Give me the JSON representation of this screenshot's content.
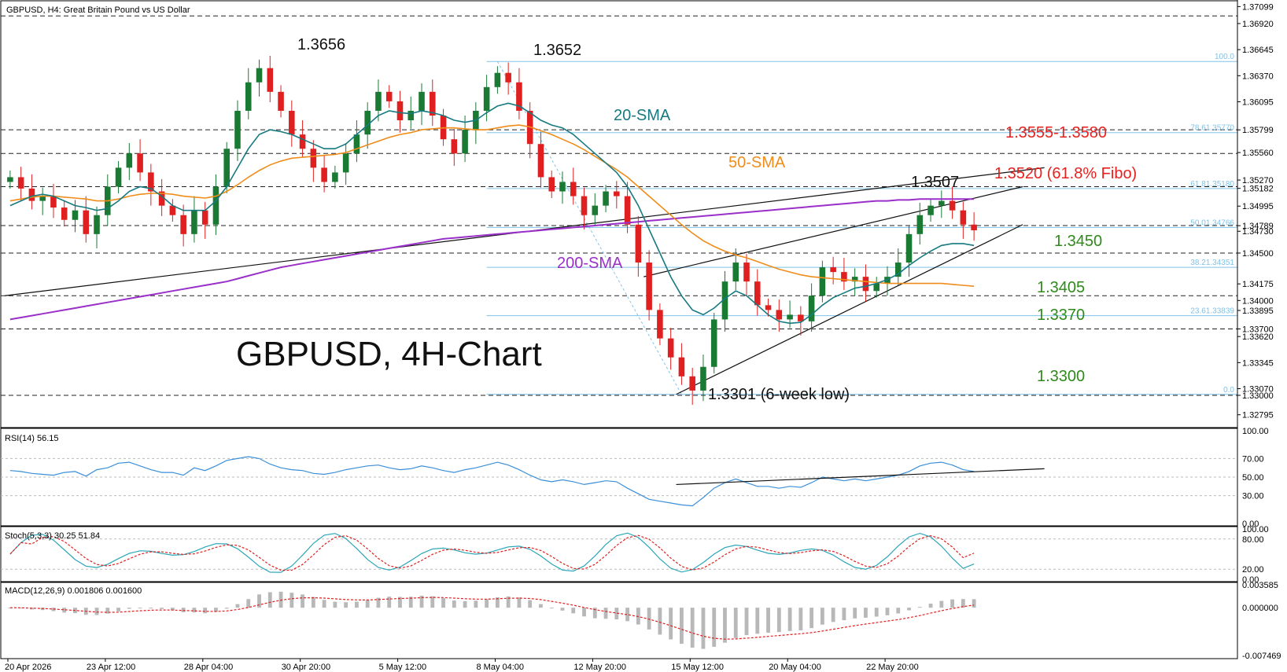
{
  "header": {
    "title": "GBPUSD, H4:  Great Britain Pound vs US Dollar"
  },
  "watermark": "GBPUSD, 4H-Chart",
  "price_axis_ticks": [
    "1.37099",
    "1.36920",
    "1.36645",
    "1.36370",
    "1.36095",
    "1.35799",
    "1.35560",
    "1.35270",
    "1.35182",
    "1.34995",
    "1.34789",
    "1.34730",
    "1.34500",
    "1.34175",
    "1.34000",
    "1.33895",
    "1.33700",
    "1.33620",
    "1.33345",
    "1.33070",
    "1.33000",
    "1.32795"
  ],
  "time_axis": [
    "20 Apr 2026",
    "23 Apr 12:00",
    "28 Apr 04:00",
    "30 Apr 20:00",
    "5 May 12:00",
    "8 May 04:00",
    "12 May 20:00",
    "15 May 12:00",
    "20 May 04:00",
    "22 May 20:00"
  ],
  "annotations": {
    "high1": "1.3656",
    "high2": "1.3652",
    "sma20": "20-SMA",
    "sma50": "50-SMA",
    "sma200": "200-SMA",
    "r_zone": "1.3555-1.3580",
    "fibo618": "1.3520 (61.8% Fibo)",
    "peak": "1.3507",
    "s1": "1.3450",
    "s2": "1.3405",
    "s3": "1.3370",
    "s4": "1.3300",
    "low": "1.3301 (6-week low)"
  },
  "fibo_labels": [
    "100.0",
    "78.61.35770",
    "61.81.35180",
    "50.01.34766",
    "38.21.34351",
    "23.61.33839",
    "0.0"
  ],
  "indicators": {
    "rsi": {
      "label": "RSI(14) 56.15",
      "ticks": [
        "100.00",
        "70.00",
        "50.00",
        "30.00",
        "0.00"
      ]
    },
    "stoch": {
      "label": "Stoch(5,3,3) 30.25 51.84",
      "ticks": [
        "100.00",
        "80.00",
        "20.00",
        "0.00"
      ]
    },
    "macd": {
      "label": "MACD(12,26,9) 0.001806 0.001600",
      "ticks": [
        "0.003585",
        "0.000000",
        "-0.007469"
      ]
    }
  },
  "colors": {
    "bull": "#1a7a34",
    "bear": "#e02020",
    "sma20": "#167a80",
    "sma50": "#f08c1a",
    "sma200": "#9a2fc9",
    "fibo": "#7ec3e8",
    "red_label": "#e8201e",
    "green_label": "#2e8b1a",
    "rsi": "#3b8fd8",
    "stoch_signal": "#e02020"
  },
  "chart_data": {
    "type": "candlestick",
    "symbol": "GBPUSD",
    "timeframe": "H4",
    "ylim": [
      1.3266,
      1.3716
    ],
    "x": [
      "20 Apr 2026",
      "23 Apr 12:00",
      "28 Apr 04:00",
      "30 Apr 20:00",
      "5 May 12:00",
      "8 May 04:00",
      "12 May 20:00",
      "15 May 12:00",
      "20 May 04:00",
      "22 May 20:00"
    ],
    "close_path": [
      1.353,
      1.3518,
      1.3505,
      1.351,
      1.3498,
      1.3485,
      1.3495,
      1.347,
      1.349,
      1.352,
      1.354,
      1.3555,
      1.3535,
      1.3515,
      1.35,
      1.349,
      1.347,
      1.3495,
      1.348,
      1.352,
      1.356,
      1.36,
      1.363,
      1.3645,
      1.362,
      1.36,
      1.3575,
      1.356,
      1.354,
      1.3525,
      1.3535,
      1.3555,
      1.3575,
      1.36,
      1.362,
      1.361,
      1.359,
      1.36,
      1.362,
      1.3595,
      1.357,
      1.3555,
      1.358,
      1.36,
      1.3625,
      1.364,
      1.363,
      1.36,
      1.3565,
      1.353,
      1.3515,
      1.3525,
      1.351,
      1.349,
      1.35,
      1.3515,
      1.351,
      1.348,
      1.344,
      1.339,
      1.336,
      1.334,
      1.332,
      1.3305,
      1.333,
      1.338,
      1.342,
      1.344,
      1.342,
      1.3395,
      1.339,
      1.338,
      1.3385,
      1.3378,
      1.3405,
      1.3435,
      1.343,
      1.342,
      1.3425,
      1.341,
      1.3418,
      1.3425,
      1.344,
      1.347,
      1.349,
      1.35,
      1.3505,
      1.3495,
      1.348,
      1.3474
    ],
    "sma20_path": [
      1.35,
      1.3505,
      1.351,
      1.3512,
      1.351,
      1.3505,
      1.35,
      1.3498,
      1.3495,
      1.3497,
      1.3505,
      1.3515,
      1.352,
      1.3518,
      1.351,
      1.35,
      1.3495,
      1.3495,
      1.3495,
      1.3505,
      1.352,
      1.354,
      1.356,
      1.3575,
      1.358,
      1.3578,
      1.3575,
      1.357,
      1.3565,
      1.356,
      1.356,
      1.3565,
      1.3575,
      1.3585,
      1.3595,
      1.36,
      1.3598,
      1.3597,
      1.36,
      1.3598,
      1.3595,
      1.359,
      1.3588,
      1.359,
      1.3598,
      1.3605,
      1.3608,
      1.3605,
      1.3598,
      1.359,
      1.3585,
      1.3582,
      1.3575,
      1.3565,
      1.3555,
      1.3545,
      1.3535,
      1.352,
      1.35,
      1.3475,
      1.345,
      1.3425,
      1.3405,
      1.339,
      1.3385,
      1.3392,
      1.3402,
      1.341,
      1.3405,
      1.3395,
      1.3385,
      1.3378,
      1.3376,
      1.3377,
      1.3385,
      1.3395,
      1.3403,
      1.3408,
      1.3413,
      1.3415,
      1.3418,
      1.3422,
      1.3428,
      1.3437,
      1.3445,
      1.3452,
      1.3458,
      1.346,
      1.346,
      1.3458
    ],
    "sma50_path": [
      1.3505,
      1.3507,
      1.3509,
      1.351,
      1.351,
      1.3509,
      1.3508,
      1.3507,
      1.3505,
      1.3505,
      1.3507,
      1.351,
      1.3512,
      1.3513,
      1.3513,
      1.3512,
      1.351,
      1.3509,
      1.3508,
      1.351,
      1.3515,
      1.3522,
      1.353,
      1.3537,
      1.3543,
      1.3547,
      1.355,
      1.3551,
      1.3552,
      1.3553,
      1.3554,
      1.3556,
      1.356,
      1.3564,
      1.3568,
      1.3572,
      1.3575,
      1.3577,
      1.358,
      1.3581,
      1.3582,
      1.3582,
      1.3581,
      1.358,
      1.358,
      1.3582,
      1.3584,
      1.3585,
      1.3583,
      1.3579,
      1.3575,
      1.357,
      1.3565,
      1.3559,
      1.3552,
      1.3545,
      1.3538,
      1.353,
      1.352,
      1.351,
      1.35,
      1.349,
      1.348,
      1.3471,
      1.3463,
      1.3457,
      1.3452,
      1.3448,
      1.3445,
      1.3441,
      1.3437,
      1.3433,
      1.343,
      1.3427,
      1.3425,
      1.3424,
      1.3423,
      1.3422,
      1.3421,
      1.342,
      1.3419,
      1.3418,
      1.3418,
      1.3418,
      1.3418,
      1.3418,
      1.3418,
      1.3417,
      1.3416,
      1.3415
    ],
    "sma200_path": [
      1.338,
      1.3382,
      1.3384,
      1.3386,
      1.3388,
      1.339,
      1.3392,
      1.3394,
      1.3396,
      1.3398,
      1.34,
      1.3402,
      1.3404,
      1.3406,
      1.3408,
      1.341,
      1.3412,
      1.3414,
      1.3416,
      1.3418,
      1.342,
      1.3423,
      1.3426,
      1.3429,
      1.3432,
      1.3435,
      1.3437,
      1.3439,
      1.3441,
      1.3443,
      1.3445,
      1.3447,
      1.3449,
      1.3451,
      1.3453,
      1.3455,
      1.3457,
      1.3459,
      1.3461,
      1.3463,
      1.3465,
      1.3466,
      1.3467,
      1.3468,
      1.3469,
      1.347,
      1.3471,
      1.3472,
      1.3473,
      1.3474,
      1.3475,
      1.3476,
      1.3477,
      1.3478,
      1.3479,
      1.348,
      1.3481,
      1.3482,
      1.3483,
      1.3484,
      1.3485,
      1.3486,
      1.3487,
      1.3488,
      1.3489,
      1.349,
      1.3491,
      1.3492,
      1.3493,
      1.3494,
      1.3495,
      1.3496,
      1.3497,
      1.3498,
      1.3499,
      1.35,
      1.3501,
      1.3502,
      1.3503,
      1.3504,
      1.3505,
      1.3505,
      1.3506,
      1.3506,
      1.3507,
      1.3507,
      1.3507,
      1.3507,
      1.3507,
      1.3507
    ],
    "levels": [
      1.37,
      1.358,
      1.3555,
      1.352,
      1.3479,
      1.345,
      1.3405,
      1.337,
      1.33
    ],
    "fibonacci": {
      "high": 1.3652,
      "low": 1.3301,
      "levels": [
        {
          "ratio": "100.0",
          "price": 1.3652
        },
        {
          "ratio": "78.6",
          "price": 1.3577
        },
        {
          "ratio": "61.8",
          "price": 1.3518
        },
        {
          "ratio": "50.0",
          "price": 1.3477
        },
        {
          "ratio": "38.2",
          "price": 1.3435
        },
        {
          "ratio": "23.6",
          "price": 1.3384
        },
        {
          "ratio": "0.0",
          "price": 1.3301
        }
      ]
    },
    "trendlines": [
      {
        "name": "long-support",
        "from": [
          0,
          1.3405
        ],
        "to": [
          96,
          1.354
        ]
      },
      {
        "name": "channel-lower",
        "from": [
          62,
          1.3301
        ],
        "to": [
          94,
          1.348
        ]
      },
      {
        "name": "channel-upper",
        "from": [
          59,
          1.3425
        ],
        "to": [
          94,
          1.352
        ]
      }
    ],
    "rsi": {
      "last": 56.15,
      "values": [
        57,
        56,
        54,
        53,
        52,
        55,
        56,
        51,
        58,
        60,
        65,
        66,
        62,
        58,
        55,
        55,
        52,
        60,
        57,
        62,
        68,
        70,
        72,
        70,
        64,
        60,
        58,
        57,
        54,
        53,
        55,
        58,
        60,
        62,
        63,
        60,
        58,
        59,
        62,
        60,
        57,
        55,
        58,
        60,
        63,
        66,
        63,
        58,
        52,
        47,
        45,
        47,
        45,
        42,
        44,
        46,
        45,
        38,
        32,
        26,
        24,
        22,
        20,
        19,
        28,
        38,
        44,
        48,
        44,
        40,
        40,
        38,
        40,
        39,
        44,
        50,
        48,
        46,
        48,
        46,
        48,
        50,
        52,
        56,
        62,
        65,
        66,
        63,
        58,
        56
      ]
    },
    "stochastic": {
      "k": 30.25,
      "d": 51.84
    },
    "macd": {
      "macd": 0.001806,
      "signal": 0.0016
    }
  }
}
